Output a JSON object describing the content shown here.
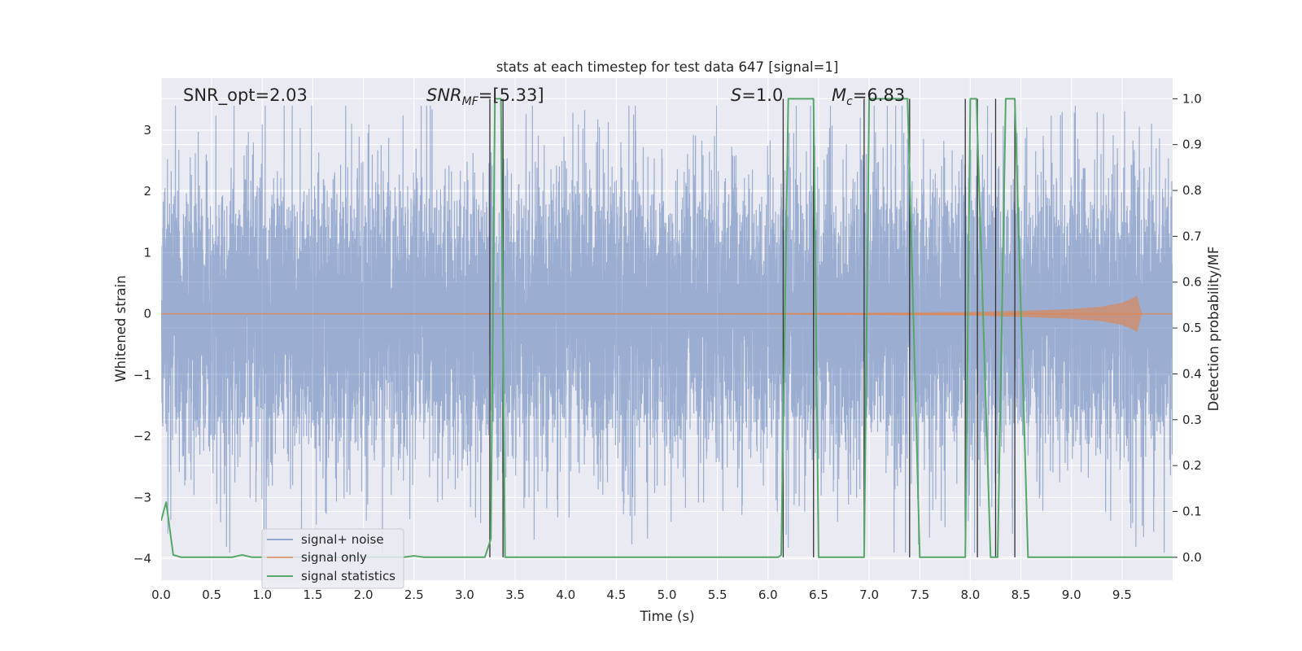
{
  "chart_data": {
    "type": "line",
    "title": "stats at each timestep for test data 647 [signal=1]",
    "xlabel": "Time (s)",
    "ylabel": "Whitened strain",
    "y2label": "Detection probability/MF",
    "xlim": [
      0.0,
      10.0
    ],
    "ylim": [
      -4.35,
      3.85
    ],
    "y2lim": [
      -0.05,
      1.045
    ],
    "x_ticks": [
      "0.0",
      "0.5",
      "1.0",
      "1.5",
      "2.0",
      "2.5",
      "3.0",
      "3.5",
      "4.0",
      "4.5",
      "5.0",
      "5.5",
      "6.0",
      "6.5",
      "7.0",
      "7.5",
      "8.0",
      "8.5",
      "9.0",
      "9.5"
    ],
    "y_ticks": [
      "3",
      "2",
      "1",
      "0",
      "−1",
      "−2",
      "−3",
      "−4"
    ],
    "y2_ticks": [
      "1.0",
      "0.9",
      "0.8",
      "0.7",
      "0.6",
      "0.5",
      "0.4",
      "0.3",
      "0.2",
      "0.1",
      "0.0"
    ],
    "grid": true,
    "legend_position": "lower-left",
    "annotations": {
      "snr_opt": "SNR_opt=2.03",
      "snr_mf_base": "SNR",
      "snr_mf_sub": "MF",
      "snr_mf_value": "=[5.33]",
      "s_symbol": "S",
      "s_value": "=1.0",
      "mc_symbol": "M",
      "mc_sub": "c",
      "mc_value": "=6.83"
    },
    "series": [
      {
        "name": "signal+ noise",
        "axis": "left",
        "color": "#4c72b0",
        "description": "dense whitened noise, roughly within -2.5..2.5 with spikes to about +3.4 and -3.9"
      },
      {
        "name": "signal only",
        "axis": "left",
        "color": "#dd8452",
        "x": [
          0,
          6.0,
          7.0,
          8.0,
          8.5,
          9.0,
          9.3,
          9.5,
          9.6,
          9.65,
          9.68,
          9.7
        ],
        "envelope": [
          0.0,
          0.01,
          0.02,
          0.03,
          0.05,
          0.08,
          0.12,
          0.18,
          0.25,
          0.3,
          0.1,
          0.0
        ]
      },
      {
        "name": "signal statistics",
        "axis": "right",
        "color": "#55a868",
        "x": [
          0.0,
          0.05,
          0.12,
          0.2,
          0.7,
          0.8,
          0.9,
          2.4,
          2.5,
          2.6,
          3.2,
          3.26,
          3.3,
          3.36,
          3.4,
          3.45,
          6.1,
          6.13,
          6.2,
          6.45,
          6.5,
          6.95,
          7.0,
          7.38,
          7.5,
          7.95,
          8.0,
          8.06,
          8.2,
          8.27,
          8.35,
          8.44,
          8.57,
          10.0
        ],
        "y": [
          0.08,
          0.12,
          0.005,
          0.0,
          0.0,
          0.005,
          0.0,
          0.0,
          0.003,
          0.0,
          0.0,
          0.04,
          1.0,
          1.0,
          0.0,
          0.0,
          0.0,
          0.005,
          1.0,
          1.0,
          0.0,
          0.0,
          1.0,
          1.0,
          0.0,
          0.0,
          1.0,
          1.0,
          0.0,
          0.0,
          1.0,
          1.0,
          0.0,
          0.0
        ]
      }
    ],
    "vertical_markers": {
      "color": "#333333",
      "x": [
        3.25,
        3.38,
        6.15,
        6.45,
        6.95,
        7.4,
        7.95,
        8.07,
        8.25,
        8.44
      ]
    },
    "legend": [
      "signal+ noise",
      "signal only",
      "signal statistics"
    ]
  }
}
